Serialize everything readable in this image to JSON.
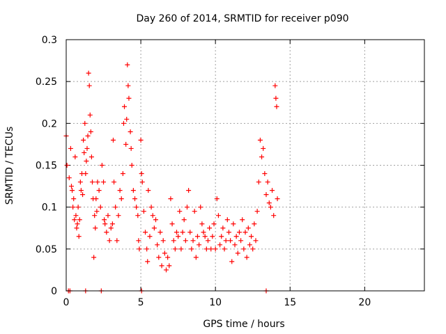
{
  "chart_data": {
    "type": "scatter",
    "title": "Day 260 of 2014, SRMTID for receiver p090",
    "xlabel": "GPS time / hours",
    "ylabel": "SRMTID / TECUs",
    "xlim": [
      0,
      24
    ],
    "ylim": [
      0,
      0.3
    ],
    "x_ticks": [
      0,
      5,
      10,
      15,
      20
    ],
    "x_tick_labels": [
      "0",
      "5",
      "10",
      "15",
      "20"
    ],
    "y_ticks": [
      0,
      0.05,
      0.1,
      0.15,
      0.2,
      0.25,
      0.3
    ],
    "y_tick_labels": [
      "0",
      "0.05",
      "0.1",
      "0.15",
      "0.2",
      "0.25",
      "0.3"
    ],
    "grid": true,
    "marker": "plus",
    "series": [
      {
        "name": "SRMTID",
        "color": "#ff0000",
        "points": [
          [
            0.0,
            0.185
          ],
          [
            0.05,
            0.15
          ],
          [
            0.2,
            0.135
          ],
          [
            0.3,
            0.17
          ],
          [
            0.35,
            0.125
          ],
          [
            0.4,
            0.12
          ],
          [
            0.45,
            0.1
          ],
          [
            0.5,
            0.11
          ],
          [
            0.55,
            0.085
          ],
          [
            0.6,
            0.16
          ],
          [
            0.65,
            0.09
          ],
          [
            0.7,
            0.075
          ],
          [
            0.75,
            0.08
          ],
          [
            0.8,
            0.1
          ],
          [
            0.85,
            0.065
          ],
          [
            0.9,
            0.085
          ],
          [
            0.95,
            0.13
          ],
          [
            1.0,
            0.12
          ],
          [
            1.05,
            0.14
          ],
          [
            1.1,
            0.115
          ],
          [
            1.15,
            0.18
          ],
          [
            1.2,
            0.165
          ],
          [
            1.25,
            0.2
          ],
          [
            1.3,
            0.14
          ],
          [
            1.35,
            0.155
          ],
          [
            1.4,
            0.17
          ],
          [
            1.45,
            0.185
          ],
          [
            1.5,
            0.26
          ],
          [
            1.55,
            0.245
          ],
          [
            1.6,
            0.21
          ],
          [
            1.65,
            0.19
          ],
          [
            1.7,
            0.16
          ],
          [
            1.75,
            0.13
          ],
          [
            1.8,
            0.11
          ],
          [
            1.85,
            0.04
          ],
          [
            1.9,
            0.09
          ],
          [
            1.95,
            0.075
          ],
          [
            2.0,
            0.11
          ],
          [
            2.05,
            0.095
          ],
          [
            2.1,
            0.13
          ],
          [
            2.2,
            0.12
          ],
          [
            2.3,
            0.1
          ],
          [
            2.4,
            0.15
          ],
          [
            2.5,
            0.13
          ],
          [
            2.55,
            0.085
          ],
          [
            2.6,
            0.08
          ],
          [
            2.7,
            0.07
          ],
          [
            2.8,
            0.09
          ],
          [
            2.9,
            0.06
          ],
          [
            3.0,
            0.075
          ],
          [
            3.1,
            0.08
          ],
          [
            3.15,
            0.18
          ],
          [
            3.2,
            0.13
          ],
          [
            3.3,
            0.1
          ],
          [
            3.4,
            0.06
          ],
          [
            3.5,
            0.09
          ],
          [
            3.6,
            0.12
          ],
          [
            3.7,
            0.11
          ],
          [
            3.8,
            0.14
          ],
          [
            3.85,
            0.2
          ],
          [
            3.9,
            0.22
          ],
          [
            4.0,
            0.175
          ],
          [
            4.05,
            0.205
          ],
          [
            4.1,
            0.27
          ],
          [
            4.15,
            0.245
          ],
          [
            4.2,
            0.23
          ],
          [
            4.3,
            0.19
          ],
          [
            4.35,
            0.17
          ],
          [
            4.4,
            0.15
          ],
          [
            4.5,
            0.12
          ],
          [
            4.6,
            0.11
          ],
          [
            4.7,
            0.1
          ],
          [
            4.8,
            0.09
          ],
          [
            4.85,
            0.06
          ],
          [
            4.9,
            0.05
          ],
          [
            5.0,
            0.18
          ],
          [
            5.05,
            0.14
          ],
          [
            5.1,
            0.13
          ],
          [
            5.2,
            0.095
          ],
          [
            5.3,
            0.07
          ],
          [
            5.4,
            0.05
          ],
          [
            5.45,
            0.035
          ],
          [
            5.5,
            0.12
          ],
          [
            5.6,
            0.065
          ],
          [
            5.7,
            0.1
          ],
          [
            5.8,
            0.09
          ],
          [
            5.9,
            0.075
          ],
          [
            6.0,
            0.085
          ],
          [
            6.1,
            0.055
          ],
          [
            6.2,
            0.04
          ],
          [
            6.3,
            0.07
          ],
          [
            6.4,
            0.03
          ],
          [
            6.5,
            0.06
          ],
          [
            6.6,
            0.045
          ],
          [
            6.7,
            0.025
          ],
          [
            6.8,
            0.04
          ],
          [
            6.9,
            0.03
          ],
          [
            7.0,
            0.11
          ],
          [
            7.1,
            0.08
          ],
          [
            7.2,
            0.06
          ],
          [
            7.3,
            0.05
          ],
          [
            7.4,
            0.07
          ],
          [
            7.5,
            0.065
          ],
          [
            7.6,
            0.095
          ],
          [
            7.7,
            0.05
          ],
          [
            7.8,
            0.07
          ],
          [
            7.9,
            0.085
          ],
          [
            8.0,
            0.06
          ],
          [
            8.1,
            0.1
          ],
          [
            8.2,
            0.12
          ],
          [
            8.3,
            0.07
          ],
          [
            8.4,
            0.05
          ],
          [
            8.5,
            0.06
          ],
          [
            8.6,
            0.095
          ],
          [
            8.7,
            0.04
          ],
          [
            8.8,
            0.065
          ],
          [
            8.9,
            0.055
          ],
          [
            9.0,
            0.1
          ],
          [
            9.1,
            0.08
          ],
          [
            9.2,
            0.07
          ],
          [
            9.3,
            0.065
          ],
          [
            9.4,
            0.05
          ],
          [
            9.5,
            0.06
          ],
          [
            9.6,
            0.075
          ],
          [
            9.7,
            0.05
          ],
          [
            9.8,
            0.065
          ],
          [
            9.9,
            0.08
          ],
          [
            10.0,
            0.05
          ],
          [
            10.1,
            0.11
          ],
          [
            10.2,
            0.09
          ],
          [
            10.3,
            0.055
          ],
          [
            10.4,
            0.065
          ],
          [
            10.5,
            0.075
          ],
          [
            10.6,
            0.05
          ],
          [
            10.7,
            0.06
          ],
          [
            10.8,
            0.085
          ],
          [
            10.9,
            0.07
          ],
          [
            11.0,
            0.06
          ],
          [
            11.1,
            0.035
          ],
          [
            11.2,
            0.08
          ],
          [
            11.3,
            0.055
          ],
          [
            11.4,
            0.065
          ],
          [
            11.5,
            0.045
          ],
          [
            11.6,
            0.07
          ],
          [
            11.7,
            0.06
          ],
          [
            11.8,
            0.085
          ],
          [
            11.9,
            0.05
          ],
          [
            12.0,
            0.07
          ],
          [
            12.1,
            0.04
          ],
          [
            12.2,
            0.075
          ],
          [
            12.3,
            0.055
          ],
          [
            12.4,
            0.065
          ],
          [
            12.5,
            0.05
          ],
          [
            12.6,
            0.08
          ],
          [
            12.7,
            0.06
          ],
          [
            12.8,
            0.095
          ],
          [
            12.9,
            0.13
          ],
          [
            13.0,
            0.18
          ],
          [
            13.1,
            0.16
          ],
          [
            13.2,
            0.17
          ],
          [
            13.3,
            0.14
          ],
          [
            13.4,
            0.115
          ],
          [
            13.5,
            0.13
          ],
          [
            13.6,
            0.105
          ],
          [
            13.7,
            0.1
          ],
          [
            13.8,
            0.12
          ],
          [
            13.9,
            0.09
          ],
          [
            14.0,
            0.245
          ],
          [
            14.05,
            0.23
          ],
          [
            14.1,
            0.22
          ],
          [
            14.15,
            0.11
          ]
        ],
        "baseline_points": [
          [
            0.15,
            0.0
          ],
          [
            0.25,
            0.0
          ],
          [
            1.3,
            0.0
          ],
          [
            2.35,
            0.0
          ],
          [
            5.05,
            0.0
          ],
          [
            13.4,
            0.0
          ]
        ]
      }
    ]
  }
}
